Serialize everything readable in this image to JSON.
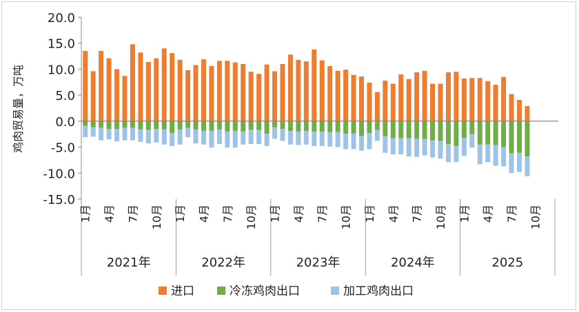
{
  "chart_data": {
    "type": "bar",
    "stacked": true,
    "ylabel": "鸡肉贸易量，万吨",
    "ylim": [
      -15,
      20
    ],
    "yticks": [
      "20.0",
      "15.0",
      "10.0",
      "5.0",
      "0.0",
      "-5.0",
      "-10.0",
      "-15.0"
    ],
    "month_tick_labels": [
      "1月",
      "4月",
      "7月",
      "10月"
    ],
    "years": [
      "2021年",
      "2022年",
      "2023年",
      "2024年",
      "2025"
    ],
    "grid": false,
    "legend_position": "bottom",
    "series": [
      {
        "name": "进口",
        "color": "#ED7D31",
        "values": [
          [
            13.5,
            9.6,
            13.5,
            12.1,
            10.0,
            8.7,
            14.8,
            13.2,
            11.4,
            12.1,
            14.0,
            13.1
          ],
          [
            11.8,
            9.8,
            10.8,
            11.9,
            10.6,
            11.6,
            11.6,
            11.3,
            11.0,
            9.5,
            9.1,
            10.9
          ],
          [
            9.6,
            11.0,
            12.8,
            11.8,
            11.5,
            13.8,
            11.7,
            10.6,
            9.7,
            9.9,
            8.9,
            8.6
          ],
          [
            7.4,
            5.6,
            7.8,
            7.2,
            9.0,
            8.1,
            9.4,
            9.7,
            7.2,
            7.2,
            9.4,
            9.5
          ],
          [
            8.2,
            8.3,
            8.3,
            7.7,
            7.0,
            8.5,
            5.2,
            4.1,
            2.9
          ]
        ]
      },
      {
        "name": "冷冻鸡肉出口",
        "color": "#70AD47",
        "values": [
          [
            -0.9,
            -1.2,
            -1.3,
            -1.5,
            -1.5,
            -1.3,
            -1.3,
            -1.6,
            -1.7,
            -1.5,
            -1.6,
            -2.3
          ],
          [
            -1.6,
            -1.3,
            -1.6,
            -1.9,
            -1.9,
            -1.6,
            -2.0,
            -1.9,
            -2.0,
            -1.7,
            -1.7,
            -2.4
          ],
          [
            -1.2,
            -1.5,
            -1.9,
            -2.0,
            -1.9,
            -2.0,
            -2.0,
            -2.1,
            -2.1,
            -2.4,
            -2.4,
            -2.9
          ],
          [
            -2.3,
            -1.7,
            -2.9,
            -3.3,
            -3.3,
            -3.3,
            -3.4,
            -3.4,
            -3.7,
            -3.8,
            -4.4,
            -4.8
          ],
          [
            -3.2,
            -2.5,
            -4.5,
            -4.5,
            -4.6,
            -5.0,
            -6.2,
            -6.1,
            -6.8
          ]
        ]
      },
      {
        "name": "加工鸡肉出口",
        "color": "#9DC3E6",
        "values": [
          [
            -2.2,
            -1.8,
            -2.4,
            -2.0,
            -2.4,
            -2.4,
            -2.4,
            -2.4,
            -2.6,
            -2.6,
            -2.9,
            -2.5
          ],
          [
            -2.9,
            -1.8,
            -2.7,
            -2.6,
            -3.2,
            -2.8,
            -3.1,
            -3.2,
            -2.5,
            -2.7,
            -2.7,
            -2.4
          ],
          [
            -2.2,
            -2.3,
            -2.6,
            -2.6,
            -2.6,
            -2.8,
            -2.8,
            -2.8,
            -2.9,
            -3.0,
            -3.0,
            -2.8
          ],
          [
            -3.1,
            -2.1,
            -3.2,
            -3.1,
            -3.1,
            -3.5,
            -3.5,
            -3.2,
            -3.3,
            -3.4,
            -3.5,
            -3.1
          ],
          [
            -3.5,
            -2.6,
            -3.8,
            -3.4,
            -4.0,
            -3.7,
            -3.8,
            -3.7,
            -3.8
          ]
        ]
      }
    ]
  }
}
